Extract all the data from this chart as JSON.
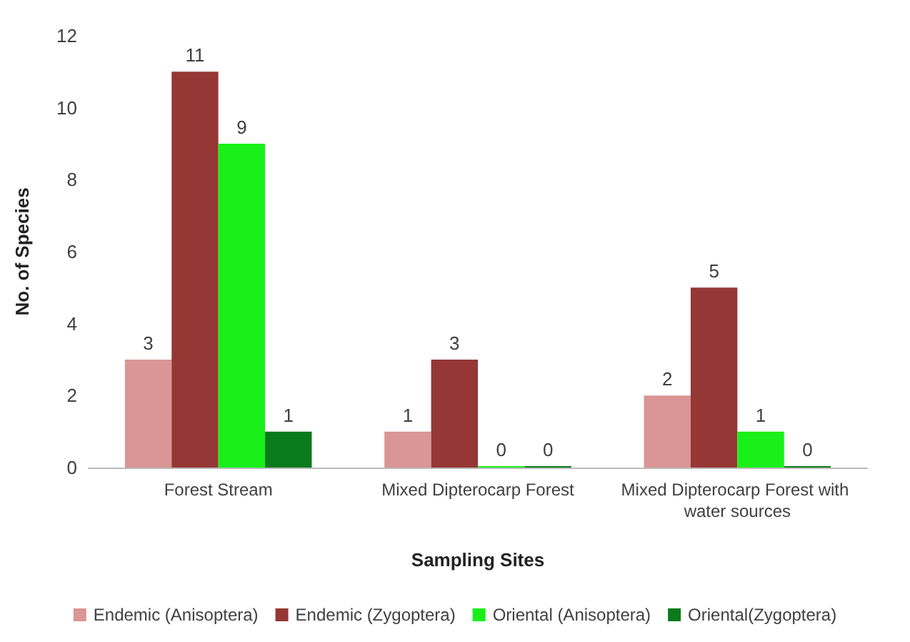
{
  "chart_data": {
    "type": "bar",
    "xlabel": "Sampling Sites",
    "ylabel": "No. of Species",
    "categories": [
      "Forest Stream",
      "Mixed Dipterocarp Forest",
      "Mixed Dipterocarp Forest with water sources"
    ],
    "series": [
      {
        "name": "Endemic (Anisoptera)",
        "color": "#d99694",
        "values": [
          3,
          1,
          2
        ]
      },
      {
        "name": "Endemic (Zygoptera)",
        "color": "#953735",
        "values": [
          11,
          3,
          5
        ]
      },
      {
        "name": "Oriental (Anisoptera)",
        "color": "#19f019",
        "values": [
          9,
          0,
          1
        ]
      },
      {
        "name": "Oriental(Zygoptera)",
        "color": "#0b7a1c",
        "values": [
          1,
          0,
          0
        ]
      }
    ],
    "ylim": [
      0,
      12
    ],
    "yticks": [
      0,
      2,
      4,
      6,
      8,
      10,
      12
    ],
    "grid": false,
    "legend": "bottom",
    "data_labels": true
  }
}
